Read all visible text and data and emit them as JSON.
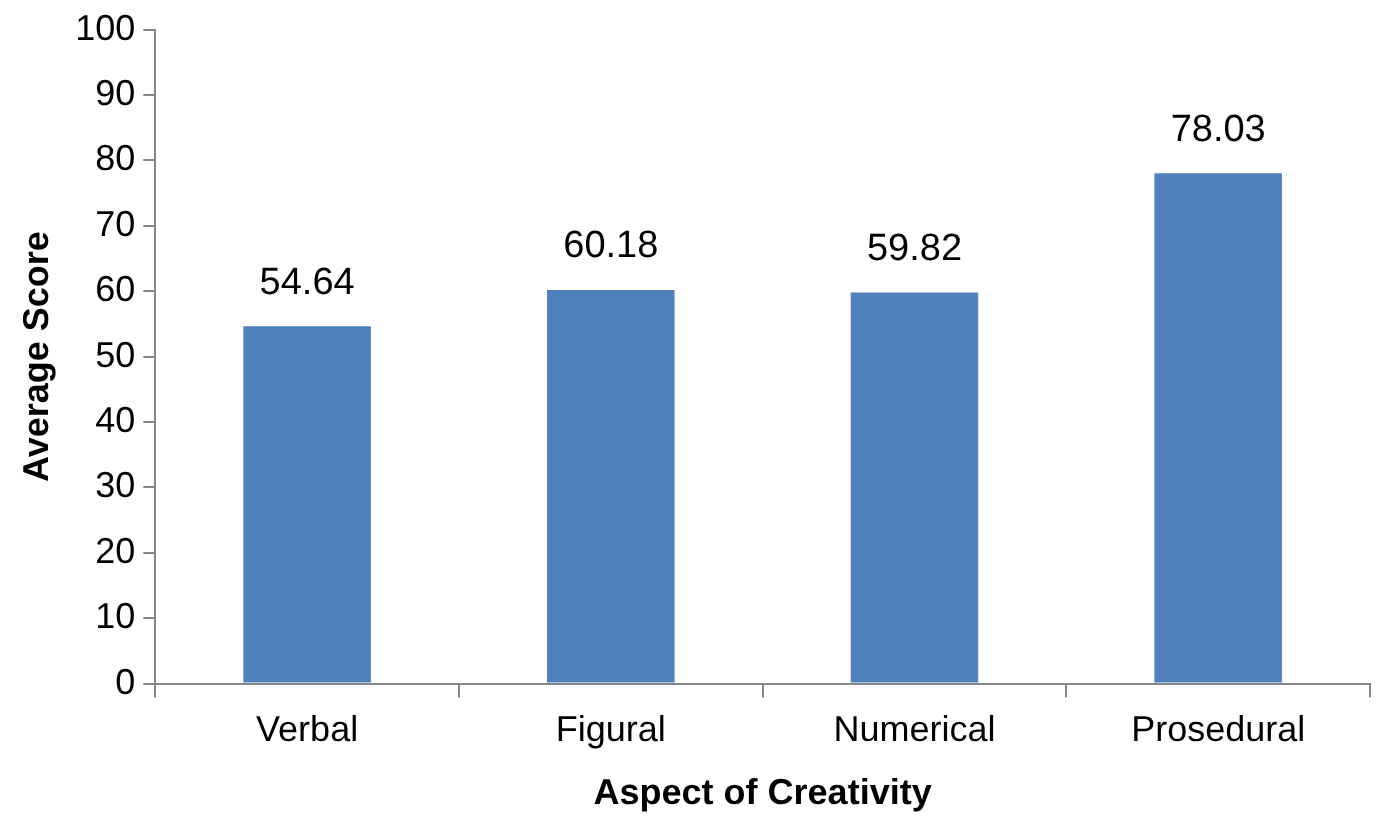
{
  "chart_data": {
    "type": "bar",
    "xlabel": "Aspect of Creativity",
    "ylabel": "Average Score",
    "categories": [
      "Verbal",
      "Figural",
      "Numerical",
      "Prosedural"
    ],
    "values": [
      54.64,
      60.18,
      59.82,
      78.03
    ],
    "color": "#4f81bd",
    "ylim": [
      0,
      100
    ],
    "yticks": [
      0,
      10,
      20,
      30,
      40,
      50,
      60,
      70,
      80,
      90,
      100
    ],
    "grid": false,
    "legend": false,
    "data_labels": true
  }
}
